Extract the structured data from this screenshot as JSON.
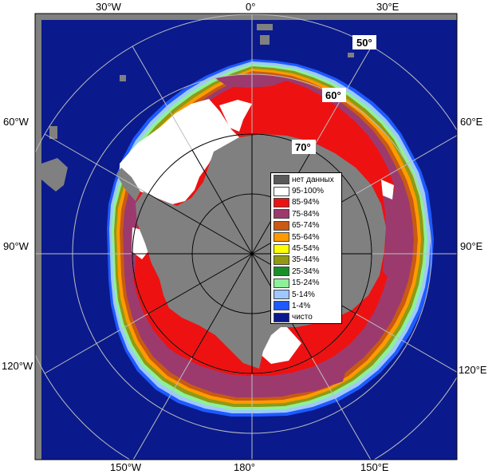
{
  "colors": {
    "open_water": "#0a1a8c",
    "land": "#808080",
    "no_data": "#595959",
    "grid": "#bdbdbd"
  },
  "longitude_labels": {
    "w30": "30°W",
    "e0": "0°",
    "e30": "30°E",
    "w60": "60°W",
    "e60": "60°E",
    "w90": "90°W",
    "e90": "90°E",
    "w120": "120°W",
    "e120": "120°E",
    "w150": "150°W",
    "e180": "180°",
    "e150": "150°E"
  },
  "latitude_labels": {
    "lat50": "50°",
    "lat60": "60°",
    "lat70": "70°"
  },
  "legend": {
    "items": [
      {
        "label": "нет данных",
        "color": "#595959"
      },
      {
        "label": "95-100%",
        "color": "#ffffff"
      },
      {
        "label": "85-94%",
        "color": "#ee1111"
      },
      {
        "label": "75-84%",
        "color": "#9c3a6e"
      },
      {
        "label": "65-74%",
        "color": "#c85a14"
      },
      {
        "label": "55-64%",
        "color": "#ff9a00"
      },
      {
        "label": "45-54%",
        "color": "#ffff00"
      },
      {
        "label": "35-44%",
        "color": "#8f9a12"
      },
      {
        "label": "25-34%",
        "color": "#18902a"
      },
      {
        "label": "15-24%",
        "color": "#8ff09a"
      },
      {
        "label": "5-14%",
        "color": "#9ec8ff"
      },
      {
        "label": "1-4%",
        "color": "#1e5aff"
      },
      {
        "label": "чисто",
        "color": "#0a1a8c"
      }
    ]
  }
}
